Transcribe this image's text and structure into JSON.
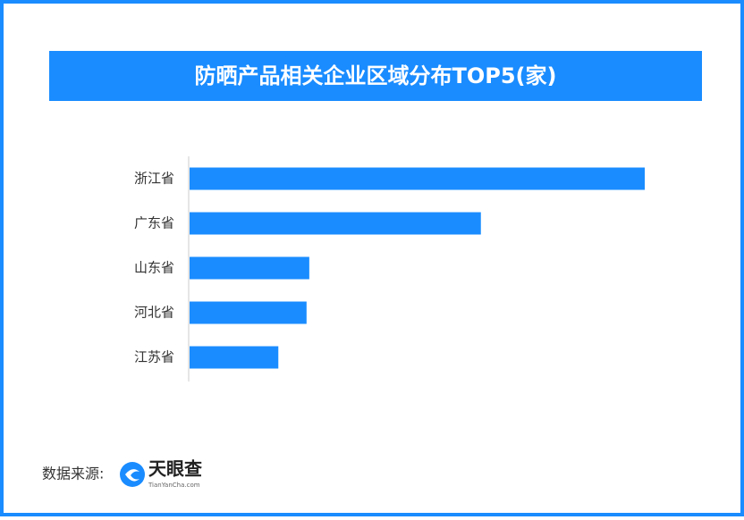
{
  "chart_data": {
    "type": "hbar",
    "title": "防晒产品相关企业区域分布TOP5(家)",
    "categories": [
      "浙江省",
      "广东省",
      "山东省",
      "河北省",
      "江苏省"
    ],
    "values": [
      100,
      64,
      26.3,
      25.7,
      19.5
    ],
    "color": "#1a8cff"
  },
  "footer": {
    "source_label": "数据来源:",
    "logo_text": "天眼查",
    "logo_url": "TianYanCha.com"
  }
}
